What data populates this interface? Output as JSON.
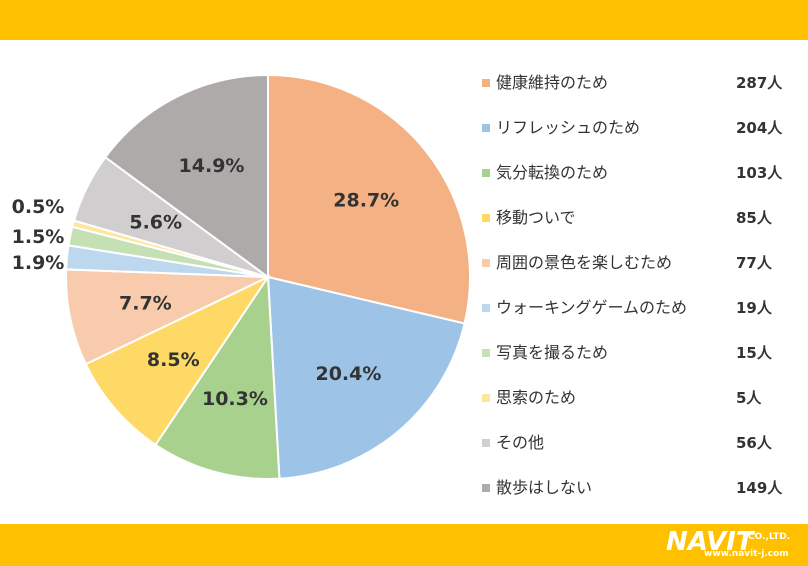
{
  "chart_data": {
    "type": "pie",
    "title": "",
    "categories": [
      "健康維持のため",
      "リフレッシュのため",
      "気分転換のため",
      "移動ついで",
      "周囲の景色を楽しむため",
      "ウォーキングゲームのため",
      "写真を撮るため",
      "思索のため",
      "その他",
      "散歩はしない"
    ],
    "values": [
      287,
      204,
      103,
      85,
      77,
      19,
      15,
      5,
      56,
      149
    ],
    "counts": [
      "287人",
      "204人",
      "103人",
      "85人",
      "77人",
      "19人",
      "15人",
      "5人",
      "56人",
      "149人"
    ],
    "percent_labels": [
      "28.7%",
      "20.4%",
      "10.3%",
      "8.5%",
      "7.7%",
      "1.9%",
      "1.5%",
      "0.5%",
      "5.6%",
      "14.9%"
    ],
    "colors": [
      "#F4B183",
      "#9DC3E6",
      "#A9D18E",
      "#FFD966",
      "#F8CBAD",
      "#BDD7EE",
      "#C5E0B4",
      "#FFE699",
      "#D0CECE",
      "#AEAAAA"
    ],
    "legend_position": "right"
  },
  "branding": {
    "logo_text": "NAVIT",
    "company_suffix": "CO.,LTD.",
    "url": "www.navit-j.com"
  }
}
